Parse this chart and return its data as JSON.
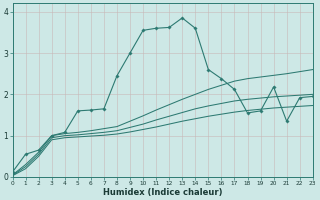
{
  "xlabel": "Humidex (Indice chaleur)",
  "bg_color": "#cde8e6",
  "grid_color_minor": "#b8d8d5",
  "grid_color_major": "#c0d8d5",
  "line_color": "#2d7a72",
  "xlim": [
    0,
    23
  ],
  "ylim": [
    0,
    4.2
  ],
  "xticks": [
    0,
    1,
    2,
    3,
    4,
    5,
    6,
    7,
    8,
    9,
    10,
    11,
    12,
    13,
    14,
    15,
    16,
    17,
    18,
    19,
    20,
    21,
    22,
    23
  ],
  "yticks": [
    0,
    1,
    2,
    3,
    4
  ],
  "curve1_x": [
    0,
    1,
    2,
    3,
    4,
    5,
    6,
    7,
    8,
    9,
    10,
    11,
    12,
    13,
    14,
    15,
    16,
    17,
    18,
    19,
    20,
    21,
    22,
    23
  ],
  "curve1_y": [
    0.12,
    0.55,
    0.65,
    1.0,
    1.08,
    1.6,
    1.62,
    1.65,
    2.45,
    3.0,
    3.55,
    3.6,
    3.62,
    3.85,
    3.6,
    2.6,
    2.38,
    2.12,
    1.55,
    1.6,
    2.18,
    1.35,
    1.92,
    1.95
  ],
  "curve2_x": [
    0,
    1,
    2,
    3,
    4,
    5,
    6,
    7,
    8,
    9,
    10,
    11,
    12,
    13,
    14,
    15,
    16,
    17,
    18,
    19,
    20,
    21,
    22,
    23
  ],
  "curve2_y": [
    0.05,
    0.3,
    0.6,
    1.0,
    1.05,
    1.08,
    1.12,
    1.17,
    1.22,
    1.35,
    1.48,
    1.62,
    1.75,
    1.88,
    2.0,
    2.12,
    2.22,
    2.32,
    2.38,
    2.42,
    2.46,
    2.5,
    2.55,
    2.6
  ],
  "curve3_x": [
    0,
    1,
    2,
    3,
    4,
    5,
    6,
    7,
    8,
    9,
    10,
    11,
    12,
    13,
    14,
    15,
    16,
    17,
    18,
    19,
    20,
    21,
    22,
    23
  ],
  "curve3_y": [
    0.04,
    0.25,
    0.55,
    0.95,
    1.0,
    1.02,
    1.05,
    1.08,
    1.12,
    1.2,
    1.28,
    1.38,
    1.47,
    1.56,
    1.65,
    1.72,
    1.78,
    1.84,
    1.88,
    1.91,
    1.94,
    1.96,
    1.98,
    2.0
  ],
  "curve4_x": [
    0,
    1,
    2,
    3,
    4,
    5,
    6,
    7,
    8,
    9,
    10,
    11,
    12,
    13,
    14,
    15,
    16,
    17,
    18,
    19,
    20,
    21,
    22,
    23
  ],
  "curve4_y": [
    0.03,
    0.2,
    0.5,
    0.9,
    0.95,
    0.97,
    0.99,
    1.01,
    1.04,
    1.09,
    1.15,
    1.21,
    1.28,
    1.35,
    1.41,
    1.47,
    1.52,
    1.57,
    1.61,
    1.64,
    1.67,
    1.69,
    1.71,
    1.73
  ]
}
